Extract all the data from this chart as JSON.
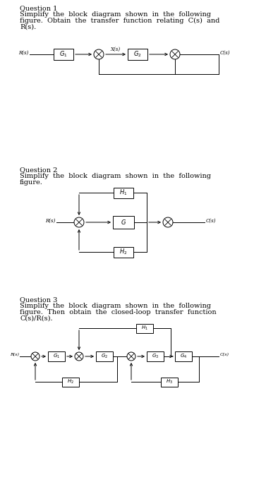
{
  "bg_color": "#ffffff",
  "text_color": "#000000",
  "line_color": "#000000",
  "fig_width": 3.94,
  "fig_height": 7.0,
  "dpi": 100,
  "q1_texts": [
    [
      "Question 1",
      7,
      false
    ],
    [
      "Simplify the block diagram shown in the following",
      6.8,
      false
    ],
    [
      "figure. Obtain the transfer function relating C(s) and",
      6.8,
      false
    ],
    [
      "R(s).",
      6.8,
      false
    ]
  ],
  "q2_texts": [
    [
      "Question 2",
      7,
      false
    ],
    [
      "Simplify the block diagram shown in the following",
      6.8,
      false
    ],
    [
      "figure.",
      6.8,
      false
    ]
  ],
  "q3_texts": [
    [
      "Question 3",
      7,
      false
    ],
    [
      "Simplify the block diagram shown in the following",
      6.8,
      false
    ],
    [
      "figure. Then obtain the closed-loop transfer function",
      6.8,
      false
    ],
    [
      "C(s)/R(s).",
      6.8,
      false
    ]
  ]
}
